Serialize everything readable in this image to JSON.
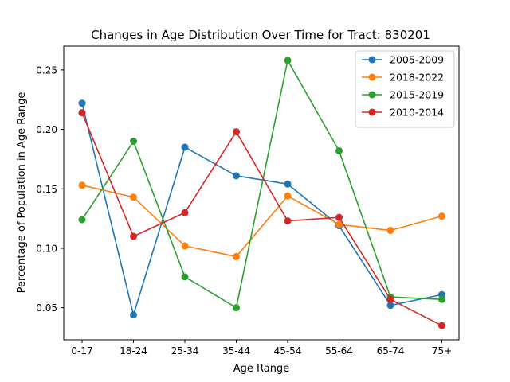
{
  "chart_data": {
    "type": "line",
    "title": "Changes in Age Distribution Over Time for Tract: 830201",
    "xlabel": "Age Range",
    "ylabel": "Percentage of Population in Age Range",
    "categories": [
      "0-17",
      "18-24",
      "25-34",
      "35-44",
      "45-54",
      "55-64",
      "65-74",
      "75+"
    ],
    "y_ticks": [
      "0.05",
      "0.10",
      "0.15",
      "0.20",
      "0.25"
    ],
    "ylim": [
      0.023,
      0.27
    ],
    "grid": false,
    "legend_position": "top-right",
    "marker": "circle",
    "series": [
      {
        "name": "2005-2009",
        "color": "#1f77b4",
        "values": [
          0.222,
          0.044,
          0.185,
          0.161,
          0.154,
          0.119,
          0.052,
          0.061
        ]
      },
      {
        "name": "2018-2022",
        "color": "#ff7f0e",
        "values": [
          0.153,
          0.143,
          0.102,
          0.093,
          0.144,
          0.12,
          0.115,
          0.127
        ]
      },
      {
        "name": "2015-2019",
        "color": "#2ca02c",
        "values": [
          0.124,
          0.19,
          0.076,
          0.05,
          0.258,
          0.182,
          0.059,
          0.057
        ]
      },
      {
        "name": "2010-2014",
        "color": "#d62728",
        "values": [
          0.214,
          0.11,
          0.13,
          0.198,
          0.123,
          0.126,
          0.057,
          0.035
        ]
      }
    ]
  }
}
